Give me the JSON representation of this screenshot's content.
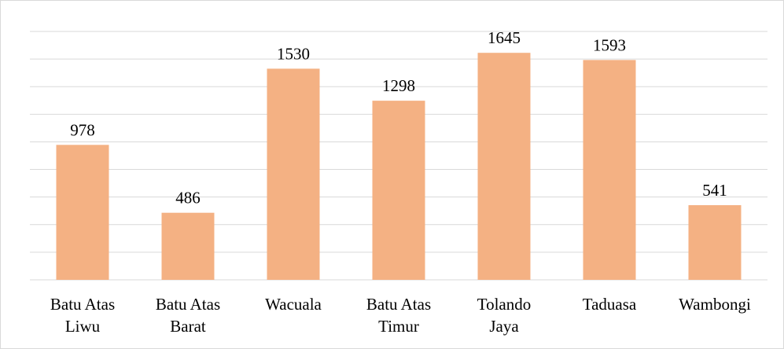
{
  "chart_data": {
    "type": "bar",
    "categories": [
      [
        "Batu Atas",
        "Liwu"
      ],
      [
        "Batu Atas",
        "Barat"
      ],
      [
        "Wacuala"
      ],
      [
        "Batu Atas",
        "Timur"
      ],
      [
        "Tolando",
        "Jaya"
      ],
      [
        "Taduasa"
      ],
      [
        "Wambongi"
      ]
    ],
    "values": [
      978,
      486,
      1530,
      1298,
      1645,
      1593,
      541
    ],
    "data_labels": [
      "978",
      "486",
      "1530",
      "1298",
      "1645",
      "1593",
      "541"
    ],
    "ylim": [
      0,
      1800
    ],
    "grid_step": 200,
    "grid": true,
    "legend": "none",
    "title": "",
    "xlabel": "",
    "ylabel": "",
    "colors": {
      "bar": "#f4b183",
      "grid": "#d9d9d9",
      "text": "#000000"
    }
  }
}
